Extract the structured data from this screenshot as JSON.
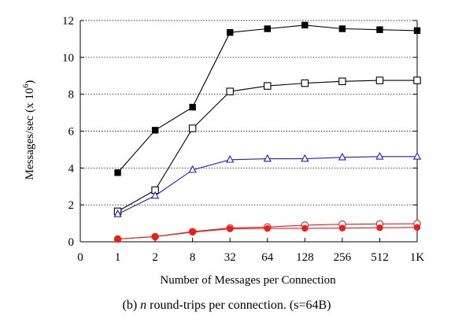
{
  "chart_data": {
    "type": "line",
    "caption_prefix": "(b) ",
    "caption_var": "n",
    "caption_suffix": " round-trips per connection. (s=64B)",
    "xlabel": "Number of Messages per Connection",
    "ylabel_main": "Messages/sec (x 10",
    "ylabel_exp": "6",
    "ylabel_close": ")",
    "x_ticks": [
      "0",
      "1",
      "2",
      "8",
      "32",
      "64",
      "128",
      "256",
      "512",
      "1K"
    ],
    "categories": [
      "1",
      "2",
      "8",
      "32",
      "64",
      "128",
      "256",
      "512",
      "1K"
    ],
    "ylim": [
      0,
      12
    ],
    "y_ticks": [
      "0",
      "2",
      "4",
      "6",
      "8",
      "10",
      "12"
    ],
    "grid": "horizontal dotted",
    "series": [
      {
        "marker": "filled-square",
        "color": "#000000",
        "values": [
          3.75,
          6.05,
          7.3,
          11.35,
          11.55,
          11.75,
          11.55,
          11.5,
          11.45
        ]
      },
      {
        "marker": "open-square",
        "color": "#000000",
        "values": [
          1.65,
          2.8,
          6.15,
          8.15,
          8.45,
          8.6,
          8.7,
          8.75,
          8.75
        ]
      },
      {
        "marker": "open-triangle",
        "color": "#1c1cd6",
        "values": [
          1.5,
          2.5,
          3.9,
          4.45,
          4.5,
          4.5,
          4.58,
          4.62,
          4.62
        ]
      },
      {
        "marker": "open-circle",
        "color": "#e8201c",
        "values": [
          0.15,
          0.28,
          0.55,
          0.75,
          0.8,
          0.9,
          0.95,
          0.97,
          0.98
        ]
      },
      {
        "marker": "filled-circle",
        "color": "#e8201c",
        "values": [
          0.15,
          0.28,
          0.52,
          0.7,
          0.72,
          0.73,
          0.74,
          0.76,
          0.78
        ]
      }
    ]
  }
}
